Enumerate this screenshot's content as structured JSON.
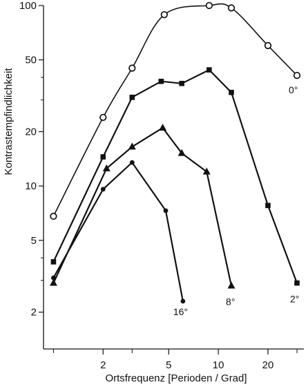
{
  "chart_data": {
    "type": "line",
    "xlabel": "Ortsfrequenz  [Perioden / Grad]",
    "ylabel": "Kontrastempfindlichkeit",
    "x_scale": "log",
    "y_scale": "log",
    "xlim": [
      0.87,
      35
    ],
    "ylim": [
      1.25,
      100
    ],
    "x_ticks": [
      {
        "value": 2,
        "label": "2"
      },
      {
        "value": 5,
        "label": "5"
      },
      {
        "value": 10,
        "label": "10"
      },
      {
        "value": 20,
        "label": "20"
      }
    ],
    "y_ticks": [
      {
        "value": 2,
        "label": "2"
      },
      {
        "value": 5,
        "label": "5"
      },
      {
        "value": 10,
        "label": "10"
      },
      {
        "value": 20,
        "label": "20"
      },
      {
        "value": 50,
        "label": "50"
      },
      {
        "value": 100,
        "label": "100"
      }
    ],
    "grid": false,
    "series": [
      {
        "name": "0°",
        "marker": "open-circle",
        "curve": "smooth",
        "x": [
          1.0,
          2.0,
          3.0,
          4.7,
          8.8,
          12.0,
          20.0,
          30.0
        ],
        "y": [
          6.8,
          24,
          45,
          89,
          100,
          97,
          60,
          41
        ]
      },
      {
        "name": "2°",
        "marker": "square",
        "curve": "straight",
        "x": [
          1.0,
          2.0,
          3.0,
          4.5,
          6.0,
          8.8,
          12.0,
          20.0,
          30.0
        ],
        "y": [
          3.8,
          14.5,
          31,
          38,
          37,
          44,
          33,
          7.8,
          2.9
        ]
      },
      {
        "name": "8°",
        "marker": "triangle",
        "curve": "straight",
        "x": [
          1.0,
          2.1,
          3.0,
          4.6,
          6.0,
          8.5,
          12.0
        ],
        "y": [
          2.9,
          12.5,
          16.5,
          21,
          15.2,
          12,
          2.8
        ]
      },
      {
        "name": "16°",
        "marker": "dot",
        "curve": "straight",
        "x": [
          1.0,
          2.0,
          3.0,
          4.8,
          6.1
        ],
        "y": [
          3.1,
          9.6,
          13.5,
          7.3,
          2.3
        ]
      }
    ]
  }
}
